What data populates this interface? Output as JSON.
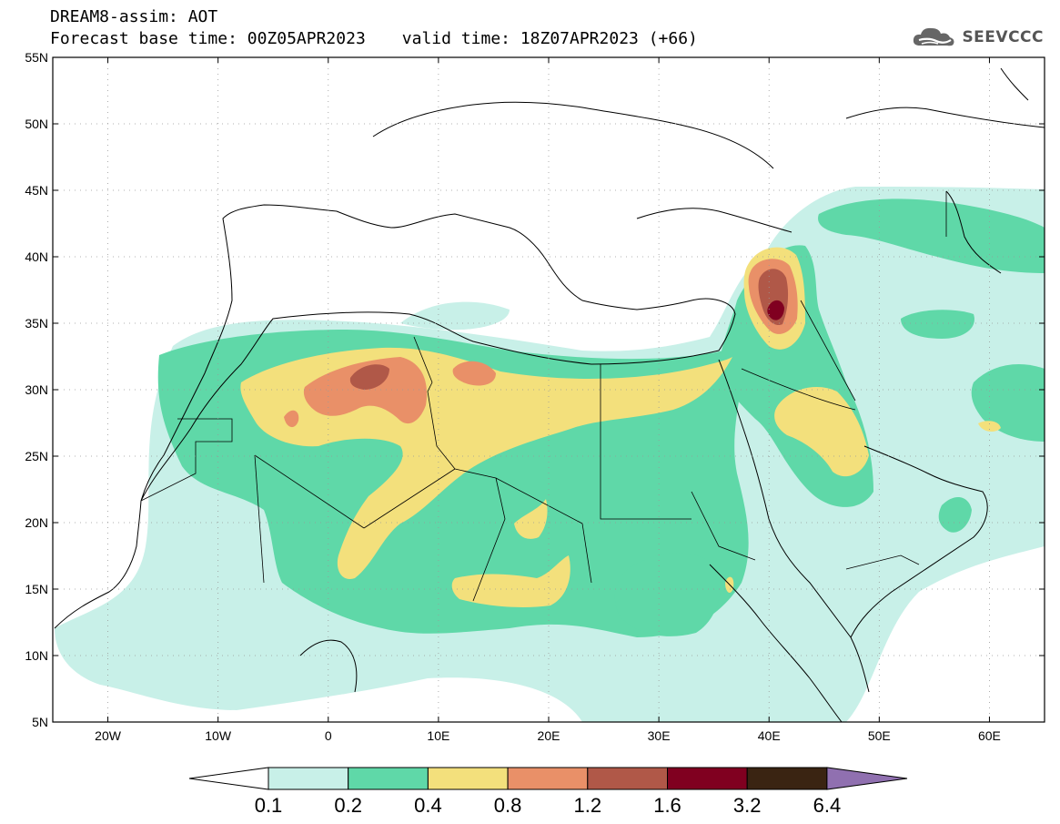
{
  "header": {
    "title_line": "DREAM8-assim: AOT",
    "base_time": "Forecast base time: 00Z05APR2023",
    "valid_time": "valid time: 18Z07APR2023 (+66)"
  },
  "logo": {
    "text": "SEEVCCC",
    "icon": "cloud-icon"
  },
  "map": {
    "lat_labels": [
      "55N",
      "50N",
      "45N",
      "40N",
      "35N",
      "30N",
      "25N",
      "20N",
      "15N",
      "10N",
      "5N"
    ],
    "lon_labels": [
      "20W",
      "10W",
      "0",
      "10E",
      "20E",
      "30E",
      "40E",
      "50E",
      "60E"
    ],
    "lat_range": [
      5,
      55
    ],
    "lon_range": [
      -25,
      65
    ]
  },
  "colorbar": {
    "labels": [
      "0.1",
      "0.2",
      "0.4",
      "0.8",
      "1.2",
      "1.6",
      "3.2",
      "6.4"
    ],
    "colors": [
      "#ffffff",
      "#c8f0e8",
      "#5fd8a8",
      "#f3e07c",
      "#e99068",
      "#b05848",
      "#800020",
      "#3a2412",
      "#9070b0"
    ]
  },
  "colors": {
    "white": "#ffffff",
    "aot_0_1": "#c8f0e8",
    "aot_0_2": "#5fd8a8",
    "aot_0_4": "#f3e07c",
    "aot_0_8": "#e99068",
    "aot_1_2": "#b05848",
    "aot_1_6": "#800020",
    "aot_3_2": "#3a2412",
    "aot_6_4": "#9070b0"
  }
}
